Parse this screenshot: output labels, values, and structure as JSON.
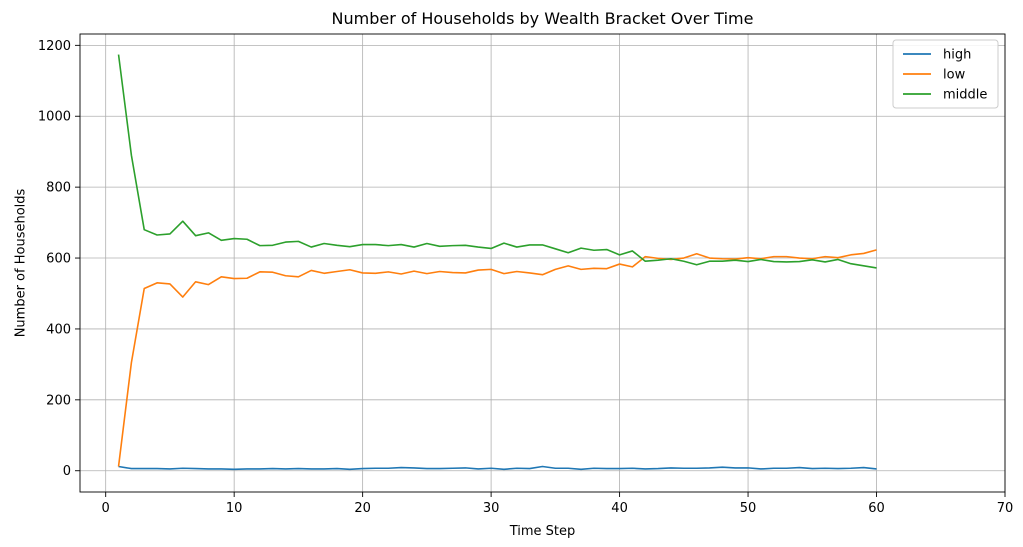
{
  "chart_data": {
    "type": "line",
    "title": "Number of Households by Wealth Bracket Over Time",
    "xlabel": "Time Step",
    "ylabel": "Number of Households",
    "xlim": [
      -2,
      70
    ],
    "ylim": [
      -60,
      1232
    ],
    "xticks": [
      0,
      10,
      20,
      30,
      40,
      50,
      60,
      70
    ],
    "yticks": [
      0,
      200,
      400,
      600,
      800,
      1000,
      1200
    ],
    "grid": true,
    "legend_position": "top-right",
    "x": [
      1,
      2,
      3,
      4,
      5,
      6,
      7,
      8,
      9,
      10,
      11,
      12,
      13,
      14,
      15,
      16,
      17,
      18,
      19,
      20,
      21,
      22,
      23,
      24,
      25,
      26,
      27,
      28,
      29,
      30,
      31,
      32,
      33,
      34,
      35,
      36,
      37,
      38,
      39,
      40,
      41,
      42,
      43,
      44,
      45,
      46,
      47,
      48,
      49,
      50,
      51,
      52,
      53,
      54,
      55,
      56,
      57,
      58,
      59,
      60
    ],
    "series": [
      {
        "name": "high",
        "color": "#1f77b4",
        "values": [
          12,
          6,
          6,
          6,
          5,
          7,
          6,
          5,
          5,
          4,
          5,
          5,
          6,
          5,
          6,
          5,
          5,
          6,
          4,
          6,
          7,
          7,
          9,
          8,
          6,
          6,
          7,
          8,
          5,
          7,
          4,
          7,
          6,
          12,
          7,
          7,
          4,
          7,
          6,
          6,
          7,
          5,
          6,
          8,
          7,
          7,
          8,
          10,
          8,
          8,
          5,
          7,
          7,
          9,
          6,
          7,
          6,
          7,
          9,
          5
        ]
      },
      {
        "name": "low",
        "color": "#ff7f0e",
        "values": [
          12,
          305,
          514,
          530,
          527,
          490,
          533,
          525,
          547,
          542,
          543,
          561,
          560,
          550,
          547,
          565,
          557,
          562,
          567,
          558,
          557,
          561,
          555,
          563,
          556,
          562,
          559,
          558,
          566,
          568,
          556,
          562,
          558,
          553,
          568,
          578,
          568,
          571,
          570,
          583,
          575,
          604,
          599,
          596,
          600,
          612,
          600,
          598,
          597,
          601,
          598,
          604,
          604,
          600,
          598,
          604,
          601,
          609,
          613,
          623
        ]
      },
      {
        "name": "middle",
        "color": "#2ca02c",
        "values": [
          1174,
          890,
          680,
          665,
          668,
          704,
          663,
          671,
          650,
          655,
          653,
          635,
          636,
          645,
          647,
          631,
          641,
          636,
          632,
          638,
          638,
          635,
          638,
          631,
          641,
          633,
          635,
          636,
          631,
          627,
          642,
          631,
          637,
          637,
          626,
          615,
          628,
          622,
          624,
          609,
          620,
          591,
          594,
          598,
          591,
          581,
          591,
          591,
          594,
          590,
          596,
          590,
          589,
          590,
          595,
          589,
          596,
          584,
          578,
          572
        ]
      }
    ]
  }
}
